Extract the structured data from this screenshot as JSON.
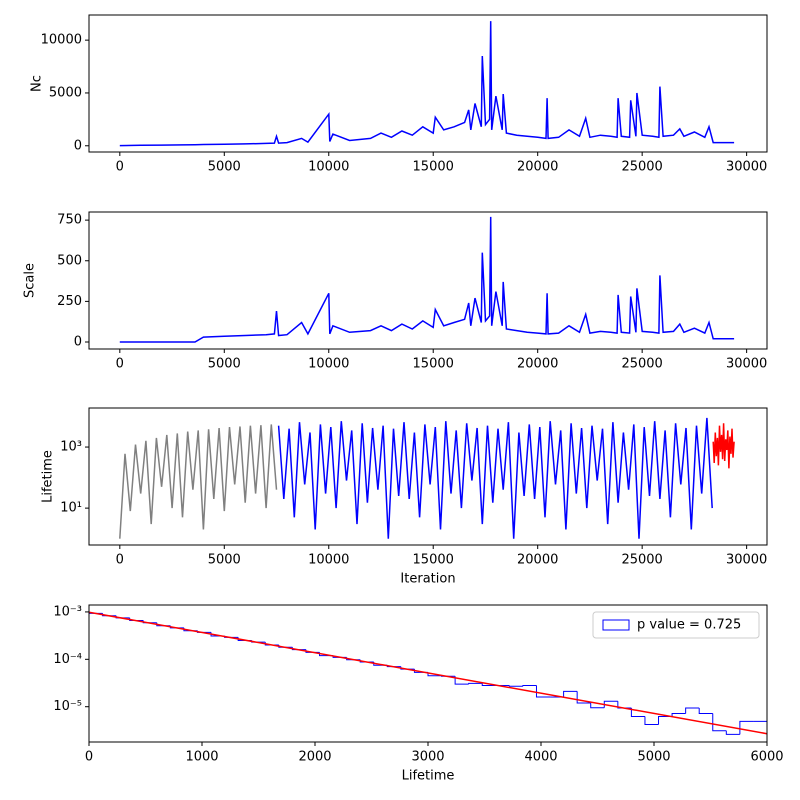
{
  "chart_data": [
    {
      "type": "line",
      "ylabel": "Nc",
      "xlim": [
        -1475,
        30975
      ],
      "ylim": [
        -590,
        12380
      ],
      "xticks": [
        0,
        5000,
        10000,
        15000,
        20000,
        25000,
        30000
      ],
      "yticks": [
        0,
        5000,
        10000
      ],
      "series": [
        {
          "color": "#0000ff",
          "x": [
            0,
            1000,
            2000,
            3000,
            3600,
            4000,
            5000,
            6000,
            7000,
            7400,
            7500,
            7600,
            8000,
            8700,
            9000,
            10000,
            10050,
            10200,
            11000,
            12000,
            12500,
            13000,
            13500,
            14000,
            14500,
            15000,
            15100,
            15500,
            16000,
            16500,
            16700,
            16800,
            17000,
            17300,
            17350,
            17500,
            17700,
            17750,
            17800,
            18000,
            18300,
            18350,
            18500,
            19000,
            19500,
            20000,
            20400,
            20450,
            20500,
            21000,
            21500,
            22000,
            22300,
            22500,
            23000,
            23500,
            23800,
            23850,
            24000,
            24400,
            24450,
            24700,
            24750,
            25000,
            25500,
            25800,
            25850,
            26000,
            26500,
            26800,
            27000,
            27500,
            28000,
            28200,
            28400,
            29400
          ],
          "values": [
            20,
            40,
            60,
            80,
            100,
            120,
            150,
            180,
            220,
            250,
            900,
            250,
            300,
            700,
            350,
            3000,
            400,
            1100,
            500,
            700,
            1200,
            800,
            1400,
            1000,
            1800,
            1200,
            2700,
            1500,
            1800,
            2200,
            3400,
            1500,
            4000,
            1800,
            8500,
            2000,
            2500,
            11800,
            1500,
            4700,
            1500,
            4900,
            1200,
            1000,
            900,
            800,
            700,
            4500,
            700,
            800,
            1500,
            900,
            2600,
            800,
            1000,
            900,
            800,
            4500,
            900,
            800,
            4300,
            900,
            5000,
            1000,
            900,
            800,
            5600,
            900,
            1000,
            1600,
            900,
            1300,
            800,
            1800,
            300,
            300
          ]
        }
      ]
    },
    {
      "type": "line",
      "ylabel": "Scale",
      "xlim": [
        -1475,
        30975
      ],
      "ylim": [
        -43,
        800
      ],
      "xticks": [
        0,
        5000,
        10000,
        15000,
        20000,
        25000,
        30000
      ],
      "yticks": [
        0,
        250,
        500,
        750
      ],
      "series": [
        {
          "color": "#0000ff",
          "x": [
            0,
            1000,
            2000,
            3000,
            3600,
            4000,
            5000,
            6000,
            7000,
            7400,
            7500,
            7600,
            8000,
            8700,
            9000,
            10000,
            10050,
            10200,
            11000,
            12000,
            12500,
            13000,
            13500,
            14000,
            14500,
            15000,
            15100,
            15500,
            16000,
            16500,
            16700,
            16800,
            17000,
            17300,
            17350,
            17500,
            17700,
            17750,
            17800,
            18000,
            18300,
            18350,
            18500,
            19000,
            19500,
            20000,
            20400,
            20450,
            20500,
            21000,
            21500,
            22000,
            22300,
            22500,
            23000,
            23500,
            23800,
            23850,
            24000,
            24400,
            24450,
            24700,
            24750,
            25000,
            25500,
            25800,
            25850,
            26000,
            26500,
            26800,
            27000,
            27500,
            28000,
            28200,
            28400,
            29400
          ],
          "values": [
            0,
            0,
            0,
            0,
            0,
            30,
            35,
            40,
            45,
            50,
            190,
            40,
            45,
            120,
            50,
            300,
            50,
            100,
            60,
            70,
            100,
            70,
            110,
            80,
            130,
            90,
            200,
            100,
            120,
            140,
            240,
            100,
            270,
            120,
            550,
            130,
            160,
            770,
            100,
            310,
            100,
            370,
            80,
            70,
            60,
            55,
            50,
            300,
            50,
            55,
            100,
            60,
            170,
            55,
            65,
            60,
            55,
            290,
            60,
            55,
            280,
            60,
            330,
            65,
            60,
            55,
            410,
            60,
            65,
            110,
            60,
            85,
            55,
            120,
            20,
            20
          ]
        }
      ]
    },
    {
      "type": "line",
      "ylabel": "Lifetime",
      "xlabel": "Iteration",
      "yscale": "log",
      "xlim": [
        -1475,
        30975
      ],
      "ylim": [
        0.62,
        19000
      ],
      "xticks": [
        0,
        5000,
        10000,
        15000,
        20000,
        25000,
        30000
      ],
      "yticks": [
        {
          "value": 10,
          "label": "10¹"
        },
        {
          "value": 1000,
          "label": "10³"
        }
      ],
      "series": [
        {
          "color": "#808080",
          "x": [
            0,
            250,
            500,
            750,
            1000,
            1250,
            1500,
            1750,
            2000,
            2250,
            2500,
            2750,
            3000,
            3250,
            3500,
            3750,
            4000,
            4250,
            4500,
            4750,
            5000,
            5250,
            5500,
            5750,
            6000,
            6250,
            6500,
            6750,
            7000,
            7250,
            7500
          ],
          "values": [
            1,
            600,
            8,
            1200,
            30,
            1600,
            3,
            2000,
            50,
            2500,
            10,
            2800,
            5,
            3200,
            40,
            3500,
            2,
            3800,
            20,
            4200,
            8,
            4500,
            60,
            4700,
            15,
            5000,
            30,
            5200,
            10,
            5500,
            40
          ]
        },
        {
          "color": "#0000ff",
          "x": [
            7600,
            7850,
            8100,
            8350,
            8600,
            8850,
            9100,
            9350,
            9600,
            9850,
            10100,
            10350,
            10600,
            10850,
            11100,
            11350,
            11600,
            11850,
            12100,
            12350,
            12600,
            12850,
            13100,
            13350,
            13600,
            13850,
            14100,
            14350,
            14600,
            14850,
            15100,
            15350,
            15600,
            15850,
            16100,
            16350,
            16600,
            16850,
            17100,
            17350,
            17600,
            17850,
            18100,
            18350,
            18600,
            18850,
            19100,
            19350,
            19600,
            19850,
            20100,
            20350,
            20600,
            20850,
            21100,
            21350,
            21600,
            21850,
            22100,
            22350,
            22600,
            22850,
            23100,
            23350,
            23600,
            23850,
            24100,
            24350,
            24600,
            24850,
            25100,
            25350,
            25600,
            25850,
            26100,
            26350,
            26600,
            26850,
            27100,
            27350,
            27600,
            27850,
            28100,
            28350
          ],
          "values": [
            5000,
            20,
            4000,
            5,
            6500,
            60,
            3000,
            2,
            5500,
            30,
            4500,
            10,
            7000,
            80,
            3500,
            3,
            6000,
            15,
            4200,
            40,
            5000,
            1,
            4000,
            25,
            6500,
            20,
            3000,
            5,
            5500,
            60,
            4500,
            2,
            7000,
            30,
            3500,
            10,
            6000,
            80,
            4200,
            3,
            5000,
            15,
            4000,
            40,
            6500,
            1,
            3000,
            25,
            5500,
            20,
            4500,
            5,
            7000,
            60,
            3500,
            2,
            6000,
            30,
            4200,
            10,
            5000,
            80,
            4000,
            3,
            6500,
            15,
            3000,
            40,
            5500,
            1,
            4500,
            25,
            7000,
            20,
            3500,
            5,
            6000,
            60,
            4200,
            2,
            5000,
            30,
            9000,
            10
          ]
        },
        {
          "color": "#ff0000",
          "x": [
            28400,
            28450,
            28500,
            28550,
            28600,
            28650,
            28700,
            28750,
            28800,
            28850,
            28900,
            28950,
            29000,
            29050,
            29100,
            29150,
            29200,
            29250,
            29300,
            29350,
            29400
          ],
          "values": [
            1500,
            300,
            3000,
            500,
            2000,
            250,
            5000,
            700,
            2500,
            400,
            6000,
            350,
            1800,
            800,
            3500,
            200,
            2200,
            600,
            4000,
            450,
            1500
          ]
        }
      ]
    },
    {
      "type": "histogram",
      "xlabel": "Lifetime",
      "yscale": "log",
      "xlim": [
        0,
        6000
      ],
      "ylim": [
        1.8e-06,
        0.0014
      ],
      "xticks": [
        0,
        1000,
        2000,
        3000,
        4000,
        5000,
        6000
      ],
      "yticks": [
        {
          "value": 0.001,
          "label": "10⁻³"
        },
        {
          "value": 0.0001,
          "label": "10⁻⁴"
        },
        {
          "value": 1e-05,
          "label": "10⁻⁵"
        }
      ],
      "name": "p value = 0.725",
      "color": "#0000ff",
      "legend": "upper right",
      "bins": [
        0,
        120,
        240,
        360,
        480,
        600,
        720,
        840,
        960,
        1080,
        1200,
        1320,
        1440,
        1560,
        1680,
        1800,
        1920,
        2040,
        2160,
        2280,
        2400,
        2520,
        2640,
        2760,
        2880,
        3000,
        3120,
        3240,
        3360,
        3480,
        3600,
        3720,
        3840,
        3960,
        4080,
        4200,
        4320,
        4440,
        4560,
        4680,
        4800,
        4920,
        5040,
        5160,
        5280,
        5400,
        5520,
        5640,
        5760,
        5880,
        6000
      ],
      "values": [
        0.00093,
        0.00083,
        0.00075,
        0.00066,
        0.00059,
        0.00051,
        0.00046,
        0.0004,
        0.00037,
        0.00031,
        0.00029,
        0.00025,
        0.00023,
        0.0002,
        0.00018,
        0.00016,
        0.00014,
        0.00012,
        0.00011,
        9.8e-05,
        8.8e-05,
        7.5e-05,
        7e-05,
        6.2e-05,
        5.3e-05,
        4.5e-05,
        4.4e-05,
        3e-05,
        3.1e-05,
        2.8e-05,
        2.8e-05,
        2.7e-05,
        2.8e-05,
        1.6e-05,
        1.6e-05,
        2.1e-05,
        1.2e-05,
        9.5e-06,
        1.3e-05,
        9.4e-06,
        6.2e-06,
        4.2e-06,
        6.2e-06,
        7.2e-06,
        9.4e-06,
        7.2e-06,
        3.1e-06,
        2.6e-06,
        4.9e-06,
        4.9e-06
      ],
      "lines": [
        {
          "color": "#ff0000",
          "x": [
            0,
            6000
          ],
          "values": [
            0.000985,
            2.7e-06
          ]
        }
      ]
    }
  ]
}
